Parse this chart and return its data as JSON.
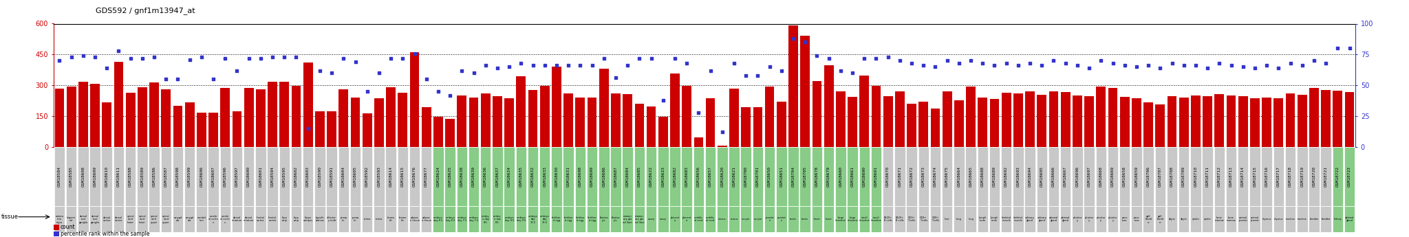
{
  "title": "GDS592 / gnf1m13947_at",
  "bar_color": "#cc0000",
  "dot_color": "#3333cc",
  "label_bg_gray": "#c8c8c8",
  "label_bg_green": "#88cc88",
  "left_axis_color": "#cc0000",
  "right_axis_color": "#3333cc",
  "samples": [
    {
      "gsm": "GSM18584",
      "tissue": "substa\nntia\nnigra",
      "count": 285,
      "pct": 70,
      "green": false
    },
    {
      "gsm": "GSM18585",
      "tissue": "trigemi\nnal",
      "count": 295,
      "pct": 73,
      "green": false
    },
    {
      "gsm": "GSM18608",
      "tissue": "dorsal\nroot\nganglia",
      "count": 318,
      "pct": 74,
      "green": false
    },
    {
      "gsm": "GSM18609",
      "tissue": "dorsal\nroot\nganglia",
      "count": 308,
      "pct": 73,
      "green": false
    },
    {
      "gsm": "GSM18610",
      "tissue": "dorsal\ncortex",
      "count": 218,
      "pct": 64,
      "green": false
    },
    {
      "gsm": "GSM18611",
      "tissue": "dorsal\ncortex",
      "count": 415,
      "pct": 78,
      "green": false
    },
    {
      "gsm": "GSM18588",
      "tissue": "spinal\ncord\nlower",
      "count": 265,
      "pct": 72,
      "green": false
    },
    {
      "gsm": "GSM18589",
      "tissue": "spinal\ncord\nlower",
      "count": 292,
      "pct": 72,
      "green": false
    },
    {
      "gsm": "GSM18586",
      "tissue": "spinal\ncord\nupper",
      "count": 315,
      "pct": 73,
      "green": false
    },
    {
      "gsm": "GSM18587",
      "tissue": "spinal\ncord\nupper",
      "count": 282,
      "pct": 55,
      "green": false
    },
    {
      "gsm": "GSM18598",
      "tissue": "amygd\nala",
      "count": 202,
      "pct": 55,
      "green": false
    },
    {
      "gsm": "GSM18599",
      "tissue": "amygd\nala",
      "count": 218,
      "pct": 71,
      "green": false
    },
    {
      "gsm": "GSM18606",
      "tissue": "cerebel\nlum",
      "count": 168,
      "pct": 73,
      "green": false
    },
    {
      "gsm": "GSM18607",
      "tissue": "cerebr\nal corte\nx",
      "count": 168,
      "pct": 55,
      "green": false
    },
    {
      "gsm": "GSM18596",
      "tissue": "cerebr\nal corte\nx",
      "count": 288,
      "pct": 72,
      "green": false
    },
    {
      "gsm": "GSM18597",
      "tissue": "dorsal\nstriatum",
      "count": 172,
      "pct": 62,
      "green": false
    },
    {
      "gsm": "GSM18600",
      "tissue": "dorsal\nstriatum",
      "count": 288,
      "pct": 72,
      "green": false
    },
    {
      "gsm": "GSM18601",
      "tissue": "frontal\ncortex",
      "count": 282,
      "pct": 72,
      "green": false
    },
    {
      "gsm": "GSM18594",
      "tissue": "frontal\ncortex",
      "count": 318,
      "pct": 73,
      "green": false
    },
    {
      "gsm": "GSM18595",
      "tissue": "hipp\namp",
      "count": 318,
      "pct": 73,
      "green": false
    },
    {
      "gsm": "GSM18602",
      "tissue": "hipp\namp",
      "count": 298,
      "pct": 73,
      "green": false
    },
    {
      "gsm": "GSM18603",
      "tissue": "hippo\ncampus",
      "count": 410,
      "pct": 15,
      "green": false
    },
    {
      "gsm": "GSM18590",
      "tissue": "hypoth\nalamus",
      "count": 175,
      "pct": 62,
      "green": false
    },
    {
      "gsm": "GSM18591",
      "tissue": "olfactor\ny bulb",
      "count": 172,
      "pct": 60,
      "green": false
    },
    {
      "gsm": "GSM18604",
      "tissue": "preop\ntic",
      "count": 282,
      "pct": 72,
      "green": false
    },
    {
      "gsm": "GSM18605",
      "tissue": "preop\ntic",
      "count": 240,
      "pct": 69,
      "green": false
    },
    {
      "gsm": "GSM18592",
      "tissue": "retina",
      "count": 165,
      "pct": 45,
      "green": false
    },
    {
      "gsm": "GSM18593",
      "tissue": "retina",
      "count": 238,
      "pct": 60,
      "green": false
    },
    {
      "gsm": "GSM18614",
      "tissue": "brown\nfat",
      "count": 290,
      "pct": 72,
      "green": false
    },
    {
      "gsm": "GSM18615",
      "tissue": "brown\nfat",
      "count": 265,
      "pct": 72,
      "green": false
    },
    {
      "gsm": "GSM18676",
      "tissue": "adipos\ne tissue",
      "count": 462,
      "pct": 76,
      "green": false
    },
    {
      "gsm": "GSM18677",
      "tissue": "adipos\ne tissue",
      "count": 195,
      "pct": 55,
      "green": false
    },
    {
      "gsm": "GSM18624",
      "tissue": "embryo\nday 6.5",
      "count": 148,
      "pct": 45,
      "green": true
    },
    {
      "gsm": "GSM18625",
      "tissue": "embryo\nday 6.5",
      "count": 138,
      "pct": 42,
      "green": true
    },
    {
      "gsm": "GSM18638",
      "tissue": "embryo\nday 7.5",
      "count": 252,
      "pct": 62,
      "green": true
    },
    {
      "gsm": "GSM18639",
      "tissue": "embryo\nday 7.5",
      "count": 242,
      "pct": 60,
      "green": true
    },
    {
      "gsm": "GSM18636",
      "tissue": "embry\no day\n8.5",
      "count": 262,
      "pct": 66,
      "green": true
    },
    {
      "gsm": "GSM18637",
      "tissue": "embry\no day\n8.5",
      "count": 248,
      "pct": 64,
      "green": true
    },
    {
      "gsm": "GSM18634",
      "tissue": "embryo\nday 9.5",
      "count": 238,
      "pct": 65,
      "green": true
    },
    {
      "gsm": "GSM18635",
      "tissue": "embryo\nday 9.5",
      "count": 345,
      "pct": 68,
      "green": true
    },
    {
      "gsm": "GSM18632",
      "tissue": "embryo\nday\n10.5",
      "count": 278,
      "pct": 66,
      "green": true
    },
    {
      "gsm": "GSM18633",
      "tissue": "embryo\nday\n10.5",
      "count": 298,
      "pct": 66,
      "green": true
    },
    {
      "gsm": "GSM18630",
      "tissue": "fertilize\nd egg",
      "count": 390,
      "pct": 66,
      "green": true
    },
    {
      "gsm": "GSM18631",
      "tissue": "fertilize\nd egg",
      "count": 262,
      "pct": 66,
      "green": true
    },
    {
      "gsm": "GSM18698",
      "tissue": "fertilize\nd egg",
      "count": 242,
      "pct": 66,
      "green": true
    },
    {
      "gsm": "GSM18699",
      "tissue": "fertilize\nd egg",
      "count": 242,
      "pct": 66,
      "green": true
    },
    {
      "gsm": "GSM18686",
      "tissue": "blastoc\nyts",
      "count": 380,
      "pct": 72,
      "green": true
    },
    {
      "gsm": "GSM18687",
      "tissue": "blastoc\nyts",
      "count": 262,
      "pct": 56,
      "green": true
    },
    {
      "gsm": "GSM18684",
      "tissue": "mamm\nary gla\nnd (lact",
      "count": 258,
      "pct": 66,
      "green": true
    },
    {
      "gsm": "GSM18685",
      "tissue": "mamm\nary gla\nnd (lact",
      "count": 212,
      "pct": 72,
      "green": true
    },
    {
      "gsm": "GSM18622",
      "tissue": "ovary",
      "count": 198,
      "pct": 72,
      "green": true
    },
    {
      "gsm": "GSM18623",
      "tissue": "ovary",
      "count": 148,
      "pct": 38,
      "green": true
    },
    {
      "gsm": "GSM18682",
      "tissue": "placent\na",
      "count": 358,
      "pct": 72,
      "green": true
    },
    {
      "gsm": "GSM18683",
      "tissue": "placent\na",
      "count": 298,
      "pct": 68,
      "green": true
    },
    {
      "gsm": "GSM18656",
      "tissue": "umbilic\nal cord",
      "count": 48,
      "pct": 28,
      "green": true
    },
    {
      "gsm": "GSM18657",
      "tissue": "umbilic\nal cord",
      "count": 238,
      "pct": 62,
      "green": true
    },
    {
      "gsm": "GSM18620",
      "tissue": "uterus",
      "count": 8,
      "pct": 12,
      "green": true
    },
    {
      "gsm": "GSM18621",
      "tissue": "uterus",
      "count": 285,
      "pct": 68,
      "green": true
    },
    {
      "gsm": "GSM18700",
      "tissue": "oocyte",
      "count": 195,
      "pct": 58,
      "green": true
    },
    {
      "gsm": "GSM18701",
      "tissue": "oocyte",
      "count": 192,
      "pct": 58,
      "green": true
    },
    {
      "gsm": "GSM18650",
      "tissue": "prostat\ne",
      "count": 295,
      "pct": 65,
      "green": true
    },
    {
      "gsm": "GSM18651",
      "tissue": "prostat\ne",
      "count": 222,
      "pct": 62,
      "green": true
    },
    {
      "gsm": "GSM18704",
      "tissue": "testis",
      "count": 590,
      "pct": 88,
      "green": true
    },
    {
      "gsm": "GSM18705",
      "tissue": "testis",
      "count": 540,
      "pct": 85,
      "green": true
    },
    {
      "gsm": "GSM18678",
      "tissue": "heart",
      "count": 322,
      "pct": 74,
      "green": true
    },
    {
      "gsm": "GSM18679",
      "tissue": "heart",
      "count": 398,
      "pct": 72,
      "green": true
    },
    {
      "gsm": "GSM18660",
      "tissue": "large\nintestine",
      "count": 272,
      "pct": 62,
      "green": true
    },
    {
      "gsm": "GSM18661",
      "tissue": "large\nintestine",
      "count": 245,
      "pct": 60,
      "green": true
    },
    {
      "gsm": "GSM18690",
      "tissue": "small\nintestine",
      "count": 348,
      "pct": 72,
      "green": true
    },
    {
      "gsm": "GSM18691",
      "tissue": "small\nintestine",
      "count": 298,
      "pct": 72,
      "green": true
    },
    {
      "gsm": "GSM18670",
      "tissue": "B220+\nB cells",
      "count": 248,
      "pct": 73,
      "green": false
    },
    {
      "gsm": "GSM18671",
      "tissue": "B220+\nB cells",
      "count": 270,
      "pct": 70,
      "green": false
    },
    {
      "gsm": "GSM18672",
      "tissue": "CD3+\nT cells",
      "count": 210,
      "pct": 68,
      "green": false
    },
    {
      "gsm": "GSM18673",
      "tissue": "CD4+\nT cells",
      "count": 220,
      "pct": 66,
      "green": false
    },
    {
      "gsm": "GSM18674",
      "tissue": "CD8+\nT cells",
      "count": 188,
      "pct": 65,
      "green": false
    },
    {
      "gsm": "GSM18675",
      "tissue": "liver",
      "count": 272,
      "pct": 70,
      "green": false
    },
    {
      "gsm": "GSM18664",
      "tissue": "lung",
      "count": 228,
      "pct": 68,
      "green": false
    },
    {
      "gsm": "GSM18665",
      "tissue": "lung",
      "count": 295,
      "pct": 70,
      "green": false
    },
    {
      "gsm": "GSM18688",
      "tissue": "lymph\nnode",
      "count": 242,
      "pct": 68,
      "green": false
    },
    {
      "gsm": "GSM18689",
      "tissue": "lymph\nnode",
      "count": 235,
      "pct": 66,
      "green": false
    },
    {
      "gsm": "GSM18692",
      "tissue": "skeletal\nmuscle",
      "count": 265,
      "pct": 68,
      "green": false
    },
    {
      "gsm": "GSM18693",
      "tissue": "skeletal\nmuscle",
      "count": 262,
      "pct": 66,
      "green": false
    },
    {
      "gsm": "GSM18694",
      "tissue": "salivary\ngland",
      "count": 270,
      "pct": 68,
      "green": false
    },
    {
      "gsm": "GSM18695",
      "tissue": "salivary\ngland",
      "count": 255,
      "pct": 66,
      "green": false
    },
    {
      "gsm": "GSM18666",
      "tissue": "adrenal\ngland",
      "count": 272,
      "pct": 70,
      "green": false
    },
    {
      "gsm": "GSM18667",
      "tissue": "adrenal\ngland",
      "count": 268,
      "pct": 68,
      "green": false
    },
    {
      "gsm": "GSM18696",
      "tissue": "pituitar\ny",
      "count": 252,
      "pct": 66,
      "green": false
    },
    {
      "gsm": "GSM18697",
      "tissue": "pituitar\ny",
      "count": 248,
      "pct": 64,
      "green": false
    },
    {
      "gsm": "GSM18668",
      "tissue": "pituitar\ny",
      "count": 295,
      "pct": 70,
      "green": false
    },
    {
      "gsm": "GSM18669",
      "tissue": "pituitar\ny",
      "count": 288,
      "pct": 68,
      "green": false
    },
    {
      "gsm": "GSM18658",
      "tissue": "panc\nreas",
      "count": 245,
      "pct": 66,
      "green": false
    },
    {
      "gsm": "GSM18659",
      "tissue": "panc\nreas",
      "count": 238,
      "pct": 65,
      "green": false
    },
    {
      "gsm": "GSM18706",
      "tissue": "gall\nbladd\ner",
      "count": 218,
      "pct": 66,
      "green": false
    },
    {
      "gsm": "GSM18707",
      "tissue": "gall\nbladd\ner",
      "count": 208,
      "pct": 64,
      "green": false
    },
    {
      "gsm": "GSM18708",
      "tissue": "digits",
      "count": 248,
      "pct": 68,
      "green": false
    },
    {
      "gsm": "GSM18709",
      "tissue": "digits",
      "count": 242,
      "pct": 66,
      "green": false
    },
    {
      "gsm": "GSM18710",
      "tissue": "spider",
      "count": 252,
      "pct": 66,
      "green": false
    },
    {
      "gsm": "GSM18711",
      "tissue": "spider",
      "count": 248,
      "pct": 64,
      "green": false
    },
    {
      "gsm": "GSM18712",
      "tissue": "bone\nmarrow",
      "count": 258,
      "pct": 68,
      "green": false
    },
    {
      "gsm": "GSM18713",
      "tissue": "bone\nmarrow",
      "count": 252,
      "pct": 66,
      "green": false
    },
    {
      "gsm": "GSM18714",
      "tissue": "animal\nprostat",
      "count": 248,
      "pct": 65,
      "green": false
    },
    {
      "gsm": "GSM18715",
      "tissue": "animal\nprostat",
      "count": 238,
      "pct": 64,
      "green": false
    },
    {
      "gsm": "GSM18716",
      "tissue": "thymus",
      "count": 242,
      "pct": 66,
      "green": false
    },
    {
      "gsm": "GSM18717",
      "tissue": "thymus",
      "count": 238,
      "pct": 64,
      "green": false
    },
    {
      "gsm": "GSM18718",
      "tissue": "trachea",
      "count": 262,
      "pct": 68,
      "green": false
    },
    {
      "gsm": "GSM18719",
      "tissue": "trachea",
      "count": 255,
      "pct": 66,
      "green": false
    },
    {
      "gsm": "GSM18720",
      "tissue": "bladder",
      "count": 288,
      "pct": 70,
      "green": false
    },
    {
      "gsm": "GSM18721",
      "tissue": "bladder",
      "count": 278,
      "pct": 68,
      "green": false
    },
    {
      "gsm": "GSM18722",
      "tissue": "kidney",
      "count": 275,
      "pct": 80,
      "green": true
    },
    {
      "gsm": "GSM18723",
      "tissue": "adrenal\ngland",
      "count": 268,
      "pct": 80,
      "green": true
    }
  ]
}
